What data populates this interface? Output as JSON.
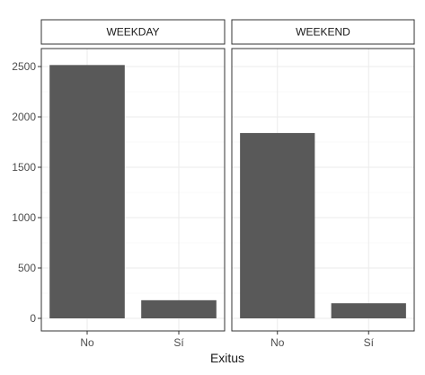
{
  "chart_data": {
    "type": "bar",
    "xlabel": "Exitus",
    "ylabel": "",
    "categories": [
      "No",
      "Sí"
    ],
    "ylim": [
      0,
      2600
    ],
    "yticks": [
      0,
      500,
      1000,
      1500,
      2000,
      2500
    ],
    "grid": true,
    "bar_color": "#595959",
    "panels": [
      {
        "name": "WEEKDAY",
        "values": [
          2515,
          180
        ]
      },
      {
        "name": "WEEKEND",
        "values": [
          1840,
          150
        ]
      }
    ]
  }
}
